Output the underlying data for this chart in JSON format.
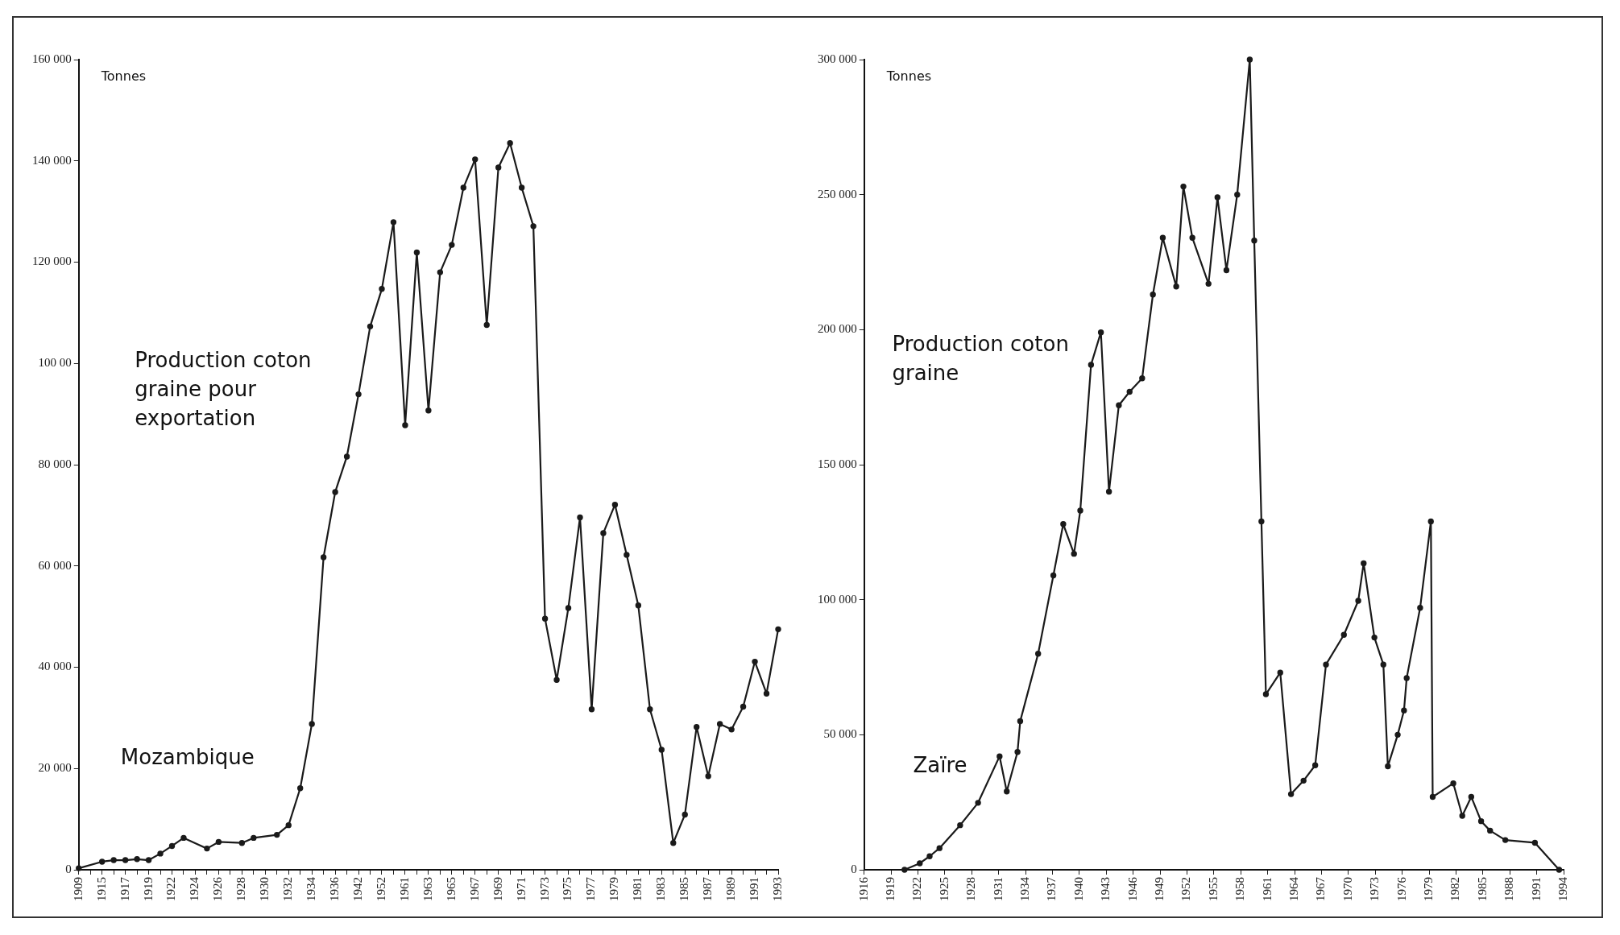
{
  "chart_data": [
    {
      "type": "line",
      "ylabel": "Tonnes",
      "annotations": [
        "Production coton graine pour exportation",
        "Mozambique"
      ],
      "categories": [
        "1909",
        null,
        "1915",
        null,
        "1917",
        null,
        "1919",
        null,
        "1922",
        null,
        "1924",
        null,
        "1926",
        null,
        "1928",
        null,
        "1930",
        null,
        "1932",
        null,
        "1934",
        null,
        "1936",
        null,
        "1942",
        null,
        "1952",
        null,
        "1961",
        null,
        "1963",
        null,
        "1965",
        null,
        "1967",
        null,
        "1969",
        null,
        "1971",
        null,
        "1973",
        null,
        "1975",
        null,
        "1977",
        null,
        "1979",
        null,
        "1981",
        null,
        "1983",
        null,
        "1985",
        null,
        "1987",
        null,
        "1989",
        null,
        "1991",
        null,
        "1993"
      ],
      "series": [
        {
          "color": "#1a1a1a",
          "values": [
            300,
            null,
            1600,
            1900,
            1900,
            2100,
            1900,
            3200,
            4700,
            6300,
            null,
            4200,
            5500,
            null,
            5300,
            6300,
            null,
            6900,
            8800,
            16100,
            28800,
            61700,
            74600,
            81600,
            93900,
            107300,
            114700,
            127900,
            87800,
            121900,
            90700,
            118000,
            123400,
            134700,
            140300,
            107600,
            138700,
            143500,
            134700,
            127100,
            49600,
            37500,
            51700,
            69600,
            31700,
            66500,
            72100,
            62200,
            52200,
            31700,
            23700,
            5300,
            10900,
            28200,
            18500,
            28800,
            27700,
            32200,
            41100,
            34800,
            47500
          ]
        }
      ],
      "ylim": [
        0,
        160000
      ],
      "yticks": [
        {
          "value": 0,
          "label": "0"
        },
        {
          "value": 20000,
          "label": "20 000"
        },
        {
          "value": 40000,
          "label": "40 000"
        },
        {
          "value": 60000,
          "label": "60 000"
        },
        {
          "value": 80000,
          "label": "80 000"
        },
        {
          "value": 100000,
          "label": "100 00"
        },
        {
          "value": 120000,
          "label": "120 000"
        },
        {
          "value": 140000,
          "label": "140 000"
        },
        {
          "value": 160000,
          "label": "160 000"
        }
      ],
      "marker": "circle",
      "line_style": "solid",
      "grid": false,
      "legend": false
    },
    {
      "type": "line",
      "ylabel": "Tonnes",
      "annotations": [
        "Production coton graine",
        "Zaïre"
      ],
      "series": [
        {
          "color": "#1a1a1a",
          "x": [
            1920.5,
            1922.2,
            1923.3,
            1924.4,
            1926.7,
            1928.7,
            1931.1,
            1931.9,
            1933.1,
            1933.4,
            1935.4,
            1937.1,
            1938.2,
            1939.4,
            1940.1,
            1941.3,
            1942.4,
            1943.3,
            1944.4,
            1945.6,
            1947.0,
            1948.2,
            1949.3,
            1950.8,
            1951.6,
            1952.6,
            1954.4,
            1955.4,
            1956.4,
            1957.6,
            1959.0,
            1959.5,
            1960.3,
            1960.8,
            1962.4,
            1963.6,
            1965.0,
            1966.3,
            1967.5,
            1969.5,
            1971.1,
            1971.7,
            1972.9,
            1973.9,
            1974.4,
            1975.5,
            1976.2,
            1976.5,
            1978.0,
            1979.2,
            1979.4,
            1981.7,
            1982.7,
            1983.7,
            1984.8,
            1985.8,
            1987.5,
            1990.8,
            1993.5
          ],
          "values": [
            0,
            2400,
            5000,
            8000,
            16500,
            24800,
            42000,
            29000,
            43600,
            55000,
            80000,
            109000,
            128000,
            117000,
            133000,
            187000,
            199000,
            140000,
            172000,
            177000,
            182000,
            213000,
            234000,
            216000,
            253000,
            234000,
            217000,
            249000,
            222000,
            250000,
            300000,
            233000,
            129000,
            65000,
            73000,
            28000,
            33000,
            38700,
            76000,
            87000,
            99600,
            113500,
            86000,
            76000,
            38300,
            50000,
            59000,
            71000,
            97000,
            129000,
            27000,
            32000,
            20000,
            27000,
            18000,
            14500,
            11000,
            10000,
            0
          ]
        }
      ],
      "xlim": [
        1916,
        1994
      ],
      "xticks": [
        1916,
        1919,
        1922,
        1925,
        1928,
        1931,
        1934,
        1937,
        1940,
        1943,
        1946,
        1949,
        1952,
        1955,
        1958,
        1961,
        1964,
        1967,
        1970,
        1973,
        1976,
        1979,
        1982,
        1985,
        1988,
        1991,
        1994
      ],
      "ylim": [
        0,
        300000
      ],
      "yticks": [
        {
          "value": 0,
          "label": "0"
        },
        {
          "value": 50000,
          "label": "50 000"
        },
        {
          "value": 100000,
          "label": "100 000"
        },
        {
          "value": 150000,
          "label": "150 000"
        },
        {
          "value": 200000,
          "label": "200 000"
        },
        {
          "value": 250000,
          "label": "250 000"
        },
        {
          "value": 300000,
          "label": "300 000"
        }
      ],
      "marker": "circle",
      "line_style": "solid",
      "grid": false,
      "legend": false
    }
  ]
}
